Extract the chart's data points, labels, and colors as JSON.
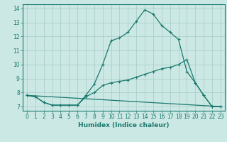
{
  "xlabel": "Humidex (Indice chaleur)",
  "bg_color": "#cce8e4",
  "grid_color": "#aad0cc",
  "line_color": "#1a7a6e",
  "xlim": [
    -0.5,
    23.5
  ],
  "ylim": [
    6.7,
    14.3
  ],
  "xticks": [
    0,
    1,
    2,
    3,
    4,
    5,
    6,
    7,
    8,
    9,
    10,
    11,
    12,
    13,
    14,
    15,
    16,
    17,
    18,
    19,
    20,
    21,
    22,
    23
  ],
  "yticks": [
    7,
    8,
    9,
    10,
    11,
    12,
    13,
    14
  ],
  "series1_x": [
    0,
    1,
    2,
    3,
    4,
    5,
    6,
    7,
    8,
    9,
    10,
    11,
    12,
    13,
    14,
    15,
    16,
    17,
    18,
    19,
    20,
    21,
    22,
    23
  ],
  "series1_y": [
    7.8,
    7.7,
    7.3,
    7.1,
    7.1,
    7.1,
    7.1,
    7.8,
    8.6,
    10.0,
    11.7,
    11.9,
    12.3,
    13.1,
    13.9,
    13.6,
    12.8,
    12.3,
    11.8,
    9.5,
    8.7,
    7.8,
    7.0,
    7.0
  ],
  "series2_x": [
    0,
    1,
    2,
    3,
    4,
    5,
    6,
    7,
    8,
    9,
    10,
    11,
    12,
    13,
    14,
    15,
    16,
    17,
    18,
    19,
    20,
    21,
    22,
    23
  ],
  "series2_y": [
    7.8,
    7.7,
    7.3,
    7.1,
    7.1,
    7.1,
    7.1,
    7.7,
    8.0,
    8.5,
    8.7,
    8.8,
    8.9,
    9.1,
    9.3,
    9.5,
    9.7,
    9.8,
    10.0,
    10.35,
    8.7,
    7.8,
    7.0,
    7.0
  ],
  "series3_x": [
    0,
    23
  ],
  "series3_y": [
    7.8,
    7.0
  ],
  "tick_fontsize": 5.5,
  "xlabel_fontsize": 6.5
}
